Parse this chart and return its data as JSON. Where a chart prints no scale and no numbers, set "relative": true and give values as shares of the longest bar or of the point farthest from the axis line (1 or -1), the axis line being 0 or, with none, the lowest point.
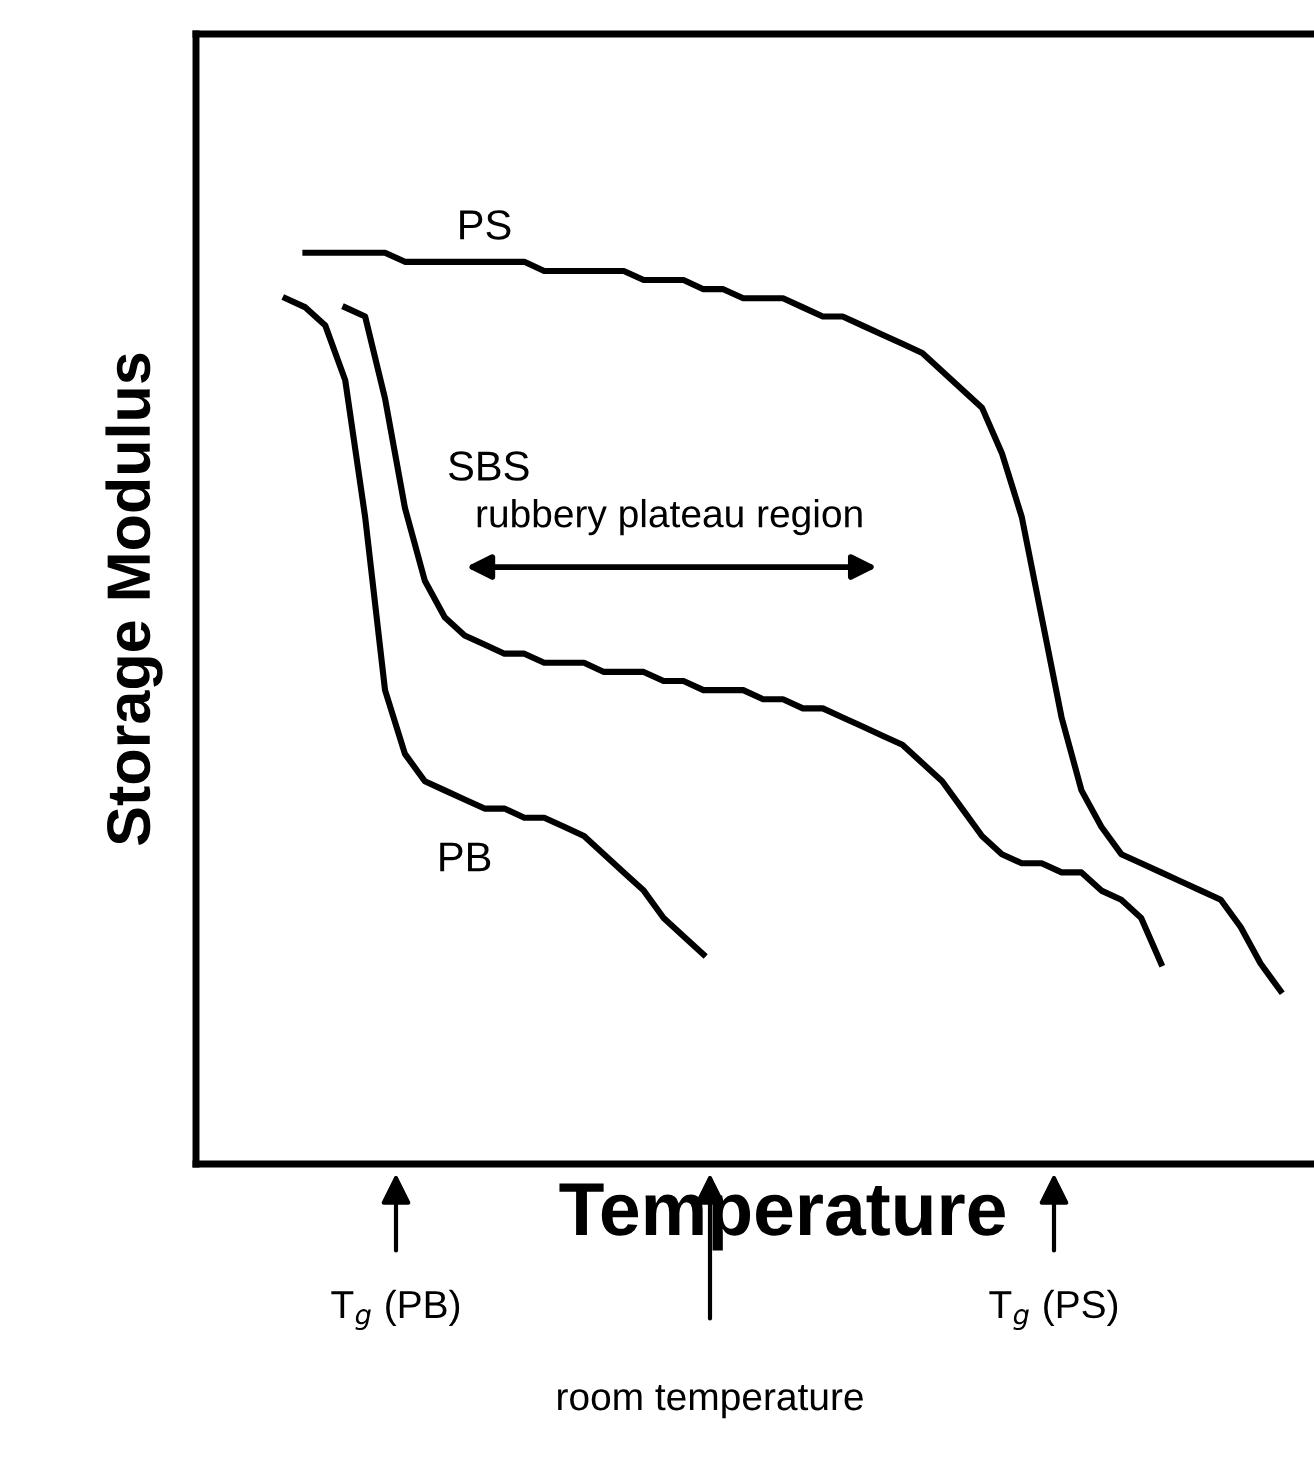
{
  "chart_data": {
    "type": "line",
    "relative": true,
    "xlabel": "Temperature",
    "ylabel": "Storage Modulus",
    "categories": [
      null,
      null,
      null,
      null,
      null,
      null,
      null,
      null,
      null,
      null,
      null,
      null,
      null,
      null,
      null,
      null,
      null,
      null,
      null,
      null,
      null,
      null,
      null,
      null,
      null,
      null,
      null,
      null,
      null,
      null,
      null,
      null,
      null,
      null,
      null,
      null,
      null,
      null,
      null,
      null,
      null,
      null,
      null,
      null,
      null,
      null,
      null,
      null,
      null,
      null,
      null,
      null,
      null,
      null,
      null,
      null,
      null,
      null,
      null
    ],
    "series": [
      {
        "name": "PS",
        "color": "#000000",
        "values": [
          null,
          null,
          null,
          null,
          null,
          1.0,
          1.0,
          1.0,
          1.0,
          1.0,
          0.99,
          0.99,
          0.99,
          0.99,
          0.99,
          0.99,
          0.99,
          0.98,
          0.98,
          0.98,
          0.98,
          0.98,
          0.97,
          0.97,
          0.97,
          0.96,
          0.96,
          0.95,
          0.95,
          0.95,
          0.94,
          0.93,
          0.93,
          0.92,
          0.91,
          0.9,
          0.89,
          0.87,
          0.85,
          0.83,
          0.78,
          0.71,
          0.6,
          0.49,
          0.41,
          0.37,
          0.34,
          0.33,
          0.32,
          0.31,
          0.3,
          0.29,
          0.26,
          0.22,
          0.19,
          null,
          null,
          null,
          null
        ]
      },
      {
        "name": "SBS",
        "color": "#000000",
        "values": [
          null,
          null,
          null,
          null,
          null,
          null,
          null,
          0.94,
          0.93,
          0.84,
          0.72,
          0.64,
          0.6,
          0.58,
          0.57,
          0.56,
          0.56,
          0.55,
          0.55,
          0.55,
          0.54,
          0.54,
          0.54,
          0.53,
          0.53,
          0.52,
          0.52,
          0.52,
          0.51,
          0.51,
          0.5,
          0.5,
          0.49,
          0.48,
          0.47,
          0.46,
          0.44,
          0.42,
          0.39,
          0.36,
          0.34,
          0.33,
          0.33,
          0.32,
          0.32,
          0.3,
          0.29,
          0.27,
          0.22,
          null,
          null,
          null,
          null,
          null,
          null,
          null,
          null,
          null,
          null
        ]
      },
      {
        "name": "PB",
        "color": "#000000",
        "values": [
          null,
          null,
          null,
          null,
          0.95,
          0.94,
          0.92,
          0.86,
          0.71,
          0.52,
          0.45,
          0.42,
          0.41,
          0.4,
          0.39,
          0.39,
          0.38,
          0.38,
          0.37,
          0.36,
          0.34,
          0.32,
          0.3,
          0.27,
          0.25,
          0.23,
          null,
          null,
          null,
          null,
          null,
          null,
          null,
          null,
          null,
          null,
          null,
          null,
          null,
          null,
          null,
          null,
          null,
          null,
          null,
          null,
          null,
          null,
          null,
          null,
          null,
          null,
          null,
          null,
          null,
          null,
          null,
          null,
          null
        ]
      }
    ],
    "annotations": [
      "rubbery plateau region",
      "T$_{g}$ (PB)",
      "room temperature",
      "T$_{g}$ (PS)"
    ],
    "grid": false,
    "legend": false,
    "tick_labels": false,
    "line_style": "solid",
    "marker": "none"
  }
}
